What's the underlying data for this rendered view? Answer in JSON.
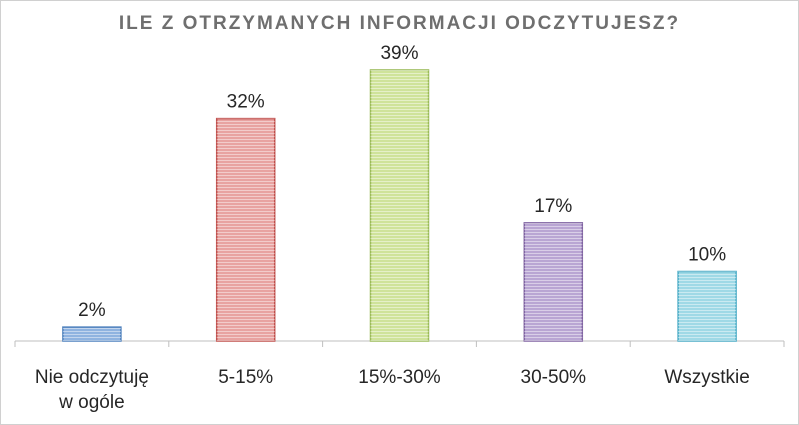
{
  "chart_data": {
    "type": "bar",
    "title": "ILE Z OTRZYMANYCH INFORMACJI ODCZYTUJESZ?",
    "categories": [
      [
        "Nie odczytuję",
        "w ogóle"
      ],
      [
        "5-15%"
      ],
      [
        "15%-30%"
      ],
      [
        "30-50%"
      ],
      [
        "Wszystkie"
      ]
    ],
    "values": [
      2,
      32,
      39,
      17,
      10
    ],
    "data_labels": [
      "2%",
      "32%",
      "39%",
      "17%",
      "10%"
    ],
    "colors": [
      {
        "fill": "#8fb3e0",
        "stroke": "#4f81bd"
      },
      {
        "fill": "#e8a3a1",
        "stroke": "#c0504d"
      },
      {
        "fill": "#cfe39a",
        "stroke": "#9bbb59"
      },
      {
        "fill": "#b9a5d3",
        "stroke": "#8064a2"
      },
      {
        "fill": "#9fd9e6",
        "stroke": "#4bacc6"
      }
    ],
    "ylim": [
      0,
      40
    ],
    "grid": false,
    "legend": "none"
  }
}
